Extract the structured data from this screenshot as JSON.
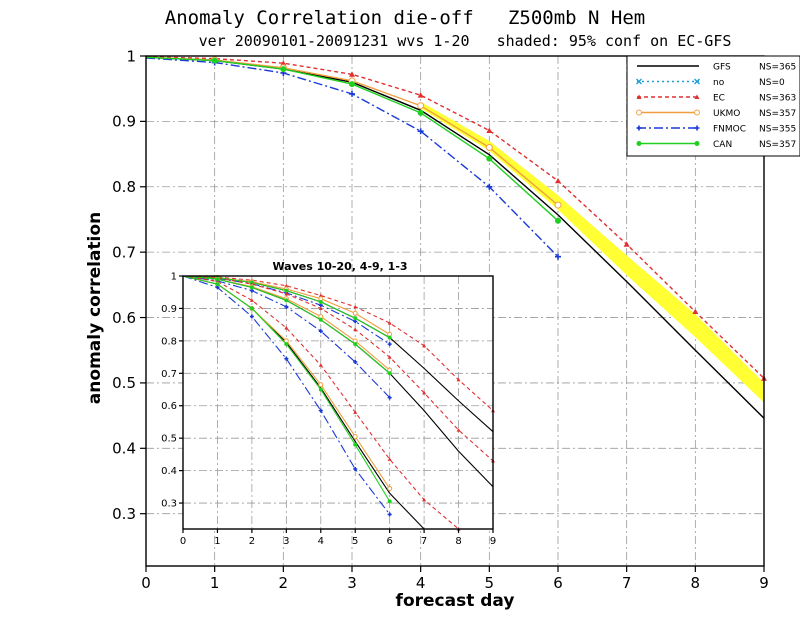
{
  "chart_data": [
    {
      "type": "line",
      "title": "Anomaly Correlation die-off   Z500mb N Hem",
      "subtitle": "ver 20090101-20091231 wvs 1-20   shaded: 95% conf on EC-GFS",
      "xlabel": "forecast day",
      "ylabel": "anomaly correlation",
      "xlim": [
        0,
        9
      ],
      "ylim": [
        0.22,
        1.0
      ],
      "x_ticks": [
        "0",
        "1",
        "2",
        "3",
        "4",
        "5",
        "6",
        "7",
        "8",
        "9"
      ],
      "y_ticks": [
        "0.3",
        "0.4",
        "0.5",
        "0.6",
        "0.7",
        "0.8",
        "0.9",
        "1"
      ],
      "grid": true,
      "legend_position": "top-right",
      "legend": [
        {
          "name": "GFS",
          "ns": "NS=365",
          "color": "#000000",
          "marker": "none",
          "dash": "solid"
        },
        {
          "name": "no",
          "ns": "NS=0",
          "color": "#1e9fd6",
          "marker": "x",
          "dash": "dot"
        },
        {
          "name": "EC",
          "ns": "NS=363",
          "color": "#e03030",
          "marker": "triangle",
          "dash": "short-dash"
        },
        {
          "name": "UKMO",
          "ns": "NS=357",
          "color": "#f0a040",
          "marker": "circle",
          "dash": "solid"
        },
        {
          "name": "FNMOC",
          "ns": "NS=355",
          "color": "#1a3ad8",
          "marker": "plus",
          "dash": "dash-dot"
        },
        {
          "name": "CAN",
          "ns": "NS=357",
          "color": "#20d020",
          "marker": "filled-circle",
          "dash": "solid"
        }
      ],
      "confidence_band": {
        "color": "#ffff33",
        "x": [
          4,
          5,
          6,
          7,
          8,
          9
        ],
        "low": [
          0.92,
          0.855,
          0.765,
          0.665,
          0.57,
          0.47
        ],
        "high": [
          0.93,
          0.87,
          0.787,
          0.695,
          0.605,
          0.5
        ]
      },
      "series": [
        {
          "name": "GFS",
          "color": "#000000",
          "x": [
            0,
            1,
            2,
            3,
            4,
            5,
            6,
            7,
            8,
            9
          ],
          "values": [
            0.998,
            0.993,
            0.98,
            0.96,
            0.917,
            0.849,
            0.757,
            0.655,
            0.55,
            0.446
          ]
        },
        {
          "name": "EC",
          "color": "#e03030",
          "x": [
            0,
            1,
            2,
            3,
            4,
            5,
            6,
            7,
            8,
            9
          ],
          "values": [
            0.999,
            0.996,
            0.989,
            0.972,
            0.94,
            0.886,
            0.809,
            0.712,
            0.609,
            0.507
          ]
        },
        {
          "name": "UKMO",
          "color": "#f0a040",
          "x": [
            0,
            1,
            2,
            3,
            4,
            5,
            6
          ],
          "values": [
            0.998,
            0.994,
            0.982,
            0.962,
            0.924,
            0.86,
            0.772
          ]
        },
        {
          "name": "FNMOC",
          "color": "#1a3ad8",
          "x": [
            0,
            1,
            2,
            3,
            4,
            5,
            6
          ],
          "values": [
            0.997,
            0.99,
            0.974,
            0.942,
            0.885,
            0.8,
            0.693
          ]
        },
        {
          "name": "CAN",
          "color": "#20d020",
          "x": [
            0,
            1,
            2,
            3,
            4,
            5,
            6
          ],
          "values": [
            0.998,
            0.993,
            0.98,
            0.957,
            0.913,
            0.843,
            0.748
          ]
        }
      ]
    },
    {
      "type": "line",
      "title": "Waves 10-20, 4-9, 1-3",
      "xlim": [
        0,
        9
      ],
      "ylim": [
        0.22,
        1.0
      ],
      "x_ticks": [
        "0",
        "1",
        "2",
        "3",
        "4",
        "5",
        "6",
        "7",
        "8",
        "9"
      ],
      "y_ticks": [
        "0.3",
        "0.4",
        "0.5",
        "0.6",
        "0.7",
        "0.8",
        "0.9",
        "1"
      ],
      "grid": true,
      "series": [
        {
          "name": "GFS",
          "group": "1-3",
          "color": "#000000",
          "x": [
            0,
            1,
            2,
            3,
            4,
            5,
            6,
            7,
            8,
            9
          ],
          "values": [
            1.0,
            0.995,
            0.98,
            0.955,
            0.92,
            0.87,
            0.81,
            0.715,
            0.615,
            0.52
          ]
        },
        {
          "name": "EC",
          "group": "1-3",
          "color": "#e03030",
          "x": [
            0,
            1,
            2,
            3,
            4,
            5,
            6,
            7,
            8,
            9
          ],
          "values": [
            1.0,
            0.997,
            0.987,
            0.97,
            0.94,
            0.905,
            0.855,
            0.785,
            0.68,
            0.585
          ]
        },
        {
          "name": "UKMO",
          "group": "1-3",
          "color": "#f0a040",
          "x": [
            0,
            1,
            2,
            3,
            4,
            5,
            6
          ],
          "values": [
            1.0,
            0.995,
            0.982,
            0.96,
            0.93,
            0.885,
            0.82
          ]
        },
        {
          "name": "FNMOC",
          "group": "1-3",
          "color": "#1a3ad8",
          "x": [
            0,
            1,
            2,
            3,
            4,
            5,
            6
          ],
          "values": [
            1.0,
            0.993,
            0.976,
            0.948,
            0.91,
            0.86,
            0.79
          ]
        },
        {
          "name": "CAN",
          "group": "1-3",
          "color": "#20d020",
          "x": [
            0,
            1,
            2,
            3,
            4,
            5,
            6
          ],
          "values": [
            1.0,
            0.995,
            0.98,
            0.955,
            0.92,
            0.87,
            0.81
          ]
        },
        {
          "name": "GFS",
          "group": "4-9",
          "color": "#000000",
          "x": [
            0,
            1,
            2,
            3,
            4,
            5,
            6,
            7,
            8,
            9
          ],
          "values": [
            1.0,
            0.99,
            0.965,
            0.925,
            0.865,
            0.79,
            0.7,
            0.585,
            0.46,
            0.35
          ]
        },
        {
          "name": "EC",
          "group": "4-9",
          "color": "#e03030",
          "x": [
            0,
            1,
            2,
            3,
            4,
            5,
            6,
            7,
            8,
            9
          ],
          "values": [
            1.0,
            0.994,
            0.975,
            0.945,
            0.9,
            0.835,
            0.75,
            0.64,
            0.525,
            0.43
          ]
        },
        {
          "name": "UKMO",
          "group": "4-9",
          "color": "#f0a040",
          "x": [
            0,
            1,
            2,
            3,
            4,
            5,
            6
          ],
          "values": [
            1.0,
            0.99,
            0.967,
            0.93,
            0.875,
            0.8,
            0.71
          ]
        },
        {
          "name": "FNMOC",
          "group": "4-9",
          "color": "#1a3ad8",
          "x": [
            0,
            1,
            2,
            3,
            4,
            5,
            6
          ],
          "values": [
            1.0,
            0.985,
            0.955,
            0.905,
            0.83,
            0.735,
            0.625
          ]
        },
        {
          "name": "CAN",
          "group": "4-9",
          "color": "#20d020",
          "x": [
            0,
            1,
            2,
            3,
            4,
            5,
            6
          ],
          "values": [
            1.0,
            0.99,
            0.965,
            0.925,
            0.865,
            0.79,
            0.7
          ]
        },
        {
          "name": "GFS",
          "group": "10-20",
          "color": "#000000",
          "x": [
            0,
            1,
            2,
            3,
            4,
            5,
            6,
            7
          ],
          "values": [
            1.0,
            0.975,
            0.9,
            0.795,
            0.655,
            0.49,
            0.33,
            0.22
          ]
        },
        {
          "name": "EC",
          "group": "10-20",
          "color": "#e03030",
          "x": [
            0,
            1,
            2,
            3,
            4,
            5,
            6,
            7,
            8
          ],
          "values": [
            1.0,
            0.983,
            0.925,
            0.84,
            0.725,
            0.58,
            0.435,
            0.31,
            0.22
          ]
        },
        {
          "name": "UKMO",
          "group": "10-20",
          "color": "#f0a040",
          "x": [
            0,
            1,
            2,
            3,
            4,
            5,
            6
          ],
          "values": [
            1.0,
            0.975,
            0.9,
            0.8,
            0.665,
            0.505,
            0.345
          ]
        },
        {
          "name": "FNMOC",
          "group": "10-20",
          "color": "#1a3ad8",
          "x": [
            0,
            1,
            2,
            3,
            4,
            5,
            6
          ],
          "values": [
            1.0,
            0.965,
            0.875,
            0.745,
            0.585,
            0.405,
            0.265
          ]
        },
        {
          "name": "CAN",
          "group": "10-20",
          "color": "#20d020",
          "x": [
            0,
            1,
            2,
            3,
            4,
            5,
            6
          ],
          "values": [
            1.0,
            0.975,
            0.9,
            0.79,
            0.65,
            0.48,
            0.305
          ]
        }
      ]
    }
  ]
}
